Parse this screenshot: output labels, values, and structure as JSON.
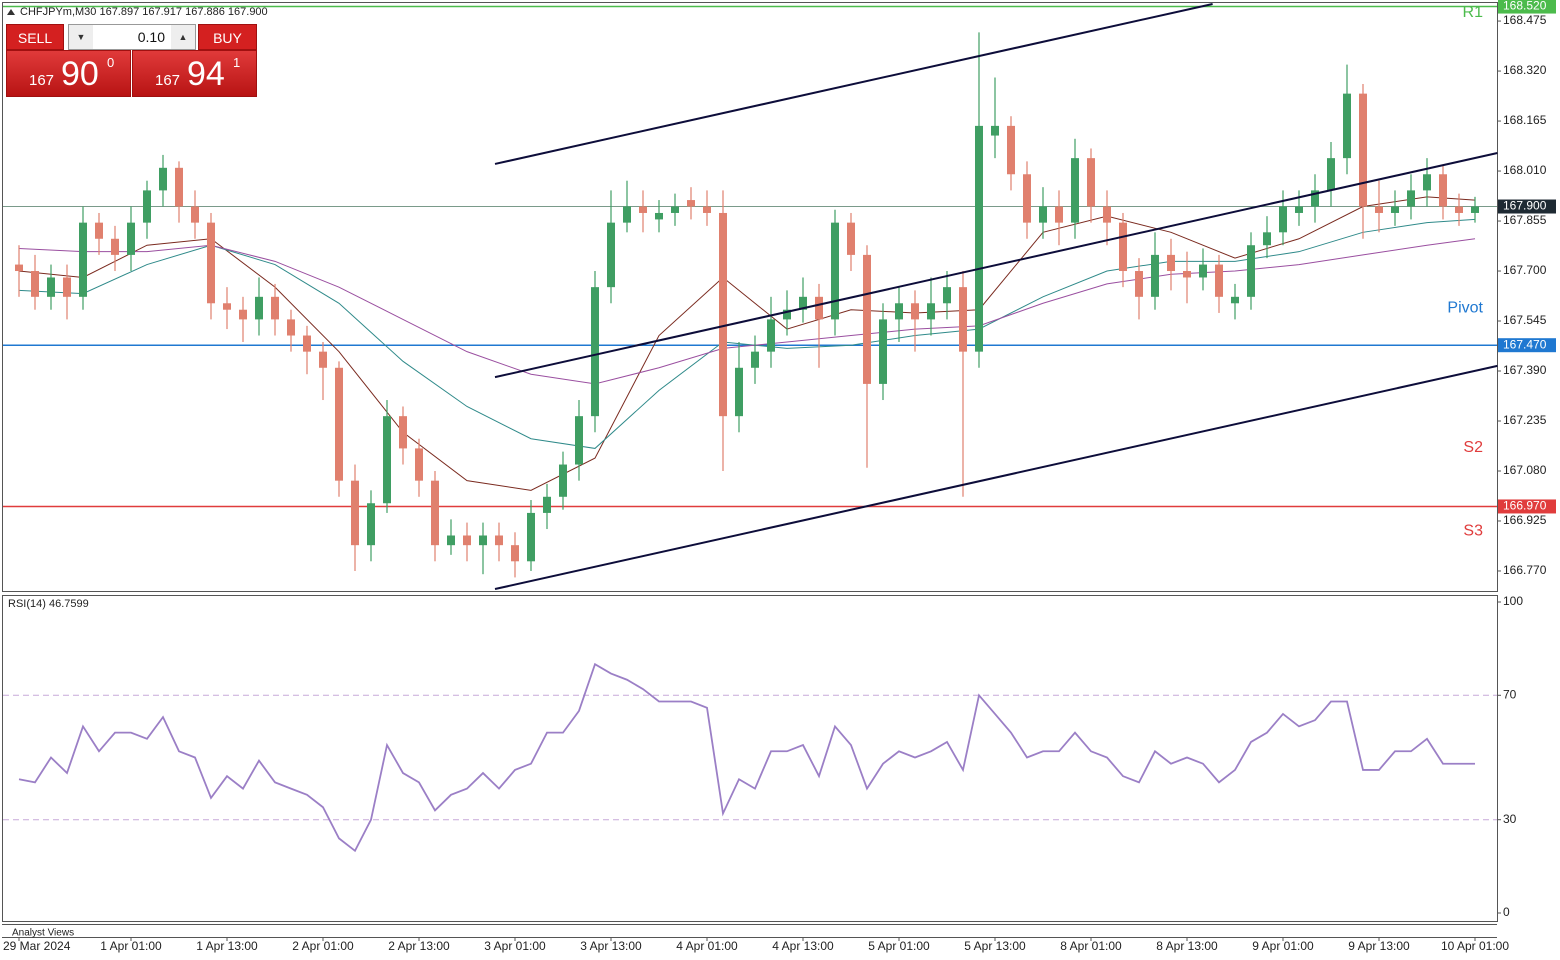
{
  "header": {
    "title": "CHFJPYm,M30  167.897 167.917 167.886 167.900"
  },
  "trade_panel": {
    "sell": "SELL",
    "buy": "BUY",
    "volume": "0.10",
    "bid": [
      "167",
      "90",
      "0"
    ],
    "ask": [
      "167",
      "94",
      "1"
    ]
  },
  "footer": "Analyst Views",
  "chart_data": [
    {
      "type": "candlestick",
      "categories": [
        "29 Mar 2024",
        null,
        null,
        null,
        null,
        null,
        null,
        "1 Apr 01:00",
        null,
        null,
        null,
        null,
        null,
        "1 Apr 13:00",
        null,
        null,
        null,
        null,
        null,
        "2 Apr 01:00",
        null,
        null,
        null,
        null,
        null,
        "2 Apr 13:00",
        null,
        null,
        null,
        null,
        null,
        "3 Apr 01:00",
        null,
        null,
        null,
        null,
        null,
        "3 Apr 13:00",
        null,
        null,
        null,
        null,
        null,
        "4 Apr 01:00",
        null,
        null,
        null,
        null,
        null,
        "4 Apr 13:00",
        null,
        null,
        null,
        null,
        null,
        "5 Apr 01:00",
        null,
        null,
        null,
        null,
        null,
        "5 Apr 13:00",
        null,
        null,
        null,
        null,
        null,
        "8 Apr 01:00",
        null,
        null,
        null,
        null,
        null,
        "8 Apr 13:00",
        null,
        null,
        null,
        null,
        null,
        "9 Apr 01:00",
        null,
        null,
        null,
        null,
        null,
        "9 Apr 13:00",
        null,
        null,
        null,
        null,
        null,
        "10 Apr 01:00"
      ],
      "open": [
        167.72,
        167.7,
        167.62,
        167.68,
        167.62,
        167.85,
        167.8,
        167.75,
        167.85,
        167.95,
        168.02,
        167.9,
        167.85,
        167.6,
        167.58,
        167.55,
        167.62,
        167.55,
        167.5,
        167.45,
        167.4,
        167.05,
        166.85,
        166.98,
        167.25,
        167.15,
        167.05,
        166.85,
        166.88,
        166.85,
        166.88,
        166.85,
        166.8,
        166.95,
        167.0,
        167.1,
        167.25,
        167.65,
        167.85,
        167.9,
        167.86,
        167.88,
        167.92,
        167.9,
        167.88,
        167.25,
        167.4,
        167.45,
        167.55,
        167.58,
        167.62,
        167.55,
        167.85,
        167.75,
        167.35,
        167.55,
        167.6,
        167.55,
        167.6,
        167.65,
        167.45,
        168.12,
        168.15,
        168.0,
        167.85,
        167.9,
        167.85,
        168.05,
        167.9,
        167.85,
        167.7,
        167.62,
        167.75,
        167.7,
        167.68,
        167.72,
        167.6,
        167.62,
        167.78,
        167.82,
        167.88,
        167.9,
        167.95,
        168.05,
        168.25,
        167.9,
        167.88,
        167.9,
        167.95,
        168.0,
        167.9,
        167.88
      ],
      "high": [
        167.78,
        167.75,
        167.72,
        167.72,
        167.9,
        167.88,
        167.84,
        167.9,
        167.98,
        168.06,
        168.04,
        167.95,
        167.88,
        167.65,
        167.62,
        167.68,
        167.66,
        167.58,
        167.53,
        167.48,
        167.42,
        167.1,
        167.02,
        167.3,
        167.28,
        167.18,
        167.08,
        166.93,
        166.92,
        166.92,
        166.92,
        166.89,
        166.99,
        167.04,
        167.14,
        167.3,
        167.7,
        167.95,
        167.98,
        167.95,
        167.92,
        167.94,
        167.96,
        167.95,
        167.95,
        167.48,
        167.5,
        167.62,
        167.64,
        167.68,
        167.66,
        167.89,
        167.88,
        167.78,
        167.6,
        167.65,
        167.64,
        167.68,
        167.7,
        167.7,
        168.44,
        168.3,
        168.18,
        168.04,
        167.96,
        167.95,
        168.11,
        168.08,
        167.95,
        167.88,
        167.74,
        167.82,
        167.8,
        167.76,
        167.77,
        167.75,
        167.66,
        167.82,
        167.87,
        167.95,
        167.95,
        168.0,
        168.1,
        168.34,
        168.28,
        167.98,
        167.95,
        168.0,
        168.05,
        168.03,
        167.94,
        167.93
      ],
      "low": [
        167.62,
        167.58,
        167.58,
        167.55,
        167.58,
        167.75,
        167.7,
        167.7,
        167.8,
        167.9,
        167.85,
        167.8,
        167.55,
        167.52,
        167.48,
        167.5,
        167.5,
        167.45,
        167.38,
        167.3,
        167.0,
        166.77,
        166.8,
        166.95,
        167.1,
        167.0,
        166.8,
        166.82,
        166.8,
        166.76,
        166.8,
        166.75,
        166.77,
        166.9,
        166.96,
        167.05,
        167.2,
        167.6,
        167.82,
        167.82,
        167.82,
        167.84,
        167.86,
        167.84,
        167.08,
        167.2,
        167.35,
        167.4,
        167.5,
        167.54,
        167.4,
        167.5,
        167.7,
        167.09,
        167.3,
        167.48,
        167.45,
        167.5,
        167.55,
        167.0,
        167.4,
        168.05,
        167.95,
        167.8,
        167.8,
        167.78,
        167.8,
        167.85,
        167.78,
        167.65,
        167.55,
        167.58,
        167.64,
        167.6,
        167.64,
        167.57,
        167.55,
        167.58,
        167.74,
        167.78,
        167.84,
        167.85,
        167.9,
        168.0,
        167.8,
        167.82,
        167.84,
        167.86,
        167.9,
        167.86,
        167.84,
        167.85
      ],
      "close": [
        167.7,
        167.62,
        167.68,
        167.62,
        167.85,
        167.8,
        167.75,
        167.85,
        167.95,
        168.02,
        167.9,
        167.85,
        167.6,
        167.58,
        167.55,
        167.62,
        167.55,
        167.5,
        167.45,
        167.4,
        167.05,
        166.85,
        166.98,
        167.25,
        167.15,
        167.05,
        166.85,
        166.88,
        166.85,
        166.88,
        166.85,
        166.8,
        166.95,
        167.0,
        167.1,
        167.25,
        167.65,
        167.85,
        167.9,
        167.88,
        167.88,
        167.9,
        167.9,
        167.88,
        167.25,
        167.4,
        167.45,
        167.55,
        167.58,
        167.62,
        167.55,
        167.85,
        167.75,
        167.35,
        167.55,
        167.6,
        167.55,
        167.6,
        167.65,
        167.45,
        168.15,
        168.15,
        168.0,
        167.85,
        167.9,
        167.85,
        168.05,
        167.9,
        167.85,
        167.7,
        167.62,
        167.75,
        167.7,
        167.68,
        167.72,
        167.62,
        167.62,
        167.78,
        167.82,
        167.9,
        167.9,
        167.95,
        168.05,
        168.25,
        167.9,
        167.88,
        167.9,
        167.95,
        168.0,
        167.9,
        167.88,
        167.9
      ],
      "up_color": "#3f9e63",
      "down_color": "#e0806e",
      "overlays": [
        {
          "color": "#7a2a1f",
          "x": [
            0,
            4,
            8,
            12,
            16,
            20,
            24,
            28,
            32,
            36,
            40,
            44,
            48,
            52,
            56,
            60,
            64,
            68,
            72,
            76,
            80,
            84,
            88,
            91
          ],
          "values": [
            167.7,
            167.68,
            167.78,
            167.8,
            167.65,
            167.45,
            167.2,
            167.05,
            167.02,
            167.12,
            167.5,
            167.68,
            167.52,
            167.58,
            167.57,
            167.58,
            167.82,
            167.87,
            167.82,
            167.74,
            167.8,
            167.9,
            167.93,
            167.92
          ]
        },
        {
          "color": "#2f8a8a",
          "x": [
            0,
            4,
            8,
            12,
            16,
            20,
            24,
            28,
            32,
            36,
            40,
            44,
            48,
            52,
            56,
            60,
            64,
            68,
            72,
            76,
            80,
            84,
            88,
            91
          ],
          "values": [
            167.64,
            167.63,
            167.72,
            167.78,
            167.72,
            167.6,
            167.42,
            167.28,
            167.18,
            167.15,
            167.33,
            167.48,
            167.46,
            167.47,
            167.5,
            167.52,
            167.62,
            167.7,
            167.73,
            167.73,
            167.76,
            167.82,
            167.85,
            167.86
          ]
        },
        {
          "color": "#9a4fa0",
          "x": [
            0,
            4,
            8,
            12,
            16,
            20,
            24,
            28,
            32,
            36,
            40,
            44,
            48,
            52,
            56,
            60,
            64,
            68,
            72,
            76,
            80,
            84,
            88,
            91
          ],
          "values": [
            167.77,
            167.76,
            167.76,
            167.78,
            167.73,
            167.65,
            167.55,
            167.45,
            167.38,
            167.35,
            167.4,
            167.46,
            167.48,
            167.5,
            167.52,
            167.53,
            167.6,
            167.66,
            167.69,
            167.7,
            167.72,
            167.75,
            167.78,
            167.8
          ]
        }
      ],
      "trendlines": [
        {
          "color": "#0d0d3a",
          "x": [
            29.75,
            74.6
          ],
          "values": [
            168.032,
            168.528
          ]
        },
        {
          "color": "#0d0d3a",
          "x": [
            29.75,
            92.4
          ],
          "values": [
            167.371,
            168.066
          ]
        },
        {
          "color": "#0d0d3a",
          "x": [
            29.75,
            92.4
          ],
          "values": [
            166.714,
            167.406
          ]
        }
      ],
      "levels": {
        "names": [
          "R1",
          "Pivot",
          "S3"
        ],
        "values": [
          168.52,
          167.47,
          166.97
        ],
        "value_labels": [
          "168.520",
          "167.470",
          "166.970"
        ],
        "colors": [
          "#4cbb4c",
          "#1f78d1",
          "#e03c3c"
        ]
      },
      "annotations": [
        "S2"
      ],
      "last_price": {
        "value": 167.9,
        "label": "167.900",
        "color": "#1e2a33"
      },
      "ylim": [
        166.711,
        168.531
      ],
      "yticks": [
        168.475,
        {
          "value": 168.32,
          "label": "168.320"
        },
        168.165,
        {
          "value": 168.01,
          "label": "168.010"
        },
        167.855,
        {
          "value": 167.7,
          "label": "167.700"
        },
        167.545,
        {
          "value": 167.39,
          "label": "167.390"
        },
        167.235,
        {
          "value": 167.08,
          "label": "167.080"
        },
        166.925,
        {
          "value": 166.77,
          "label": "166.770"
        }
      ]
    },
    {
      "type": "line",
      "title": "RSI(14) 46.7599",
      "color": "#9b7fc6",
      "values": [
        43,
        42,
        50,
        45,
        60,
        52,
        58,
        58,
        56,
        63,
        52,
        50,
        37,
        44,
        40,
        49,
        42,
        40,
        38,
        34,
        24,
        20,
        30,
        54,
        45,
        42,
        33,
        38,
        40,
        45,
        40,
        46,
        48,
        58,
        58,
        65,
        80,
        77,
        75,
        72,
        68,
        68,
        68,
        66,
        32,
        43,
        40,
        52,
        52,
        54,
        44,
        60,
        54,
        40,
        48,
        52,
        50,
        52,
        55,
        46,
        70,
        64,
        58,
        50,
        52,
        52,
        58,
        52,
        50,
        44,
        42,
        52,
        48,
        50,
        48,
        42,
        46,
        55,
        58,
        64,
        60,
        62,
        68,
        68,
        46,
        46,
        52,
        52,
        56,
        48,
        48,
        48
      ],
      "ylim": [
        0,
        100
      ],
      "yticks": [
        0,
        30,
        70,
        100
      ],
      "levels": [
        30,
        70
      ]
    }
  ]
}
